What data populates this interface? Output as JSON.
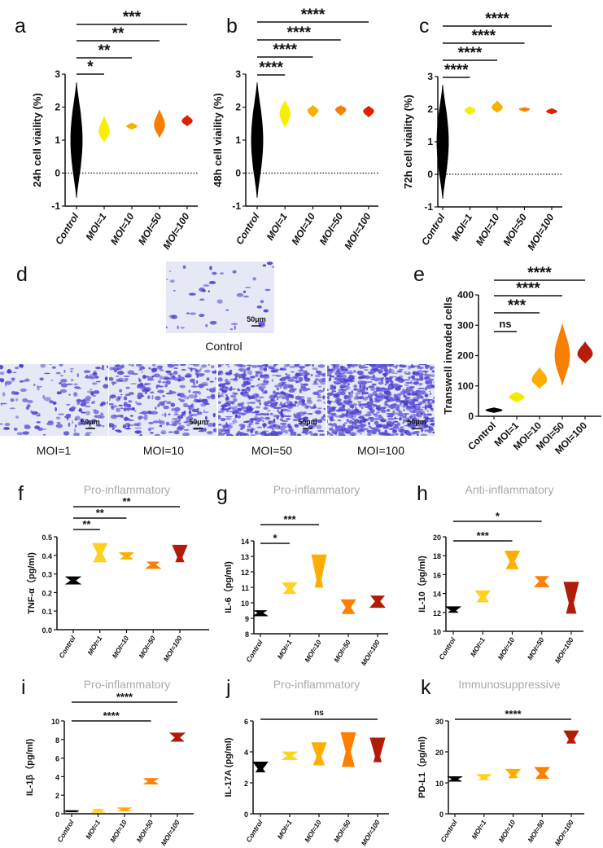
{
  "panel_d": {
    "label": "d",
    "images": [
      {
        "caption": "Control",
        "scale_bar": "50μm"
      },
      {
        "caption": "MOI=1",
        "scale_bar": "50μm"
      },
      {
        "caption": "MOI=10",
        "scale_bar": "50μm"
      },
      {
        "caption": "MOI=50",
        "scale_bar": "50μm"
      },
      {
        "caption": "MOI=100",
        "scale_bar": "50μm"
      }
    ]
  },
  "chart_data": [
    {
      "id": "a",
      "type": "violin",
      "panel_label": "a",
      "title": "",
      "ylabel": "24h cell viaility (%)",
      "ylim": [
        -1,
        3
      ],
      "yticks": [
        "-1",
        "0",
        "1",
        "2",
        "3"
      ],
      "reference_line": 0,
      "categories": [
        "Control",
        "MOI=1",
        "MOI=10",
        "MOI=50",
        "MOI=100"
      ],
      "series": [
        {
          "name": "Control",
          "min": -0.75,
          "max": 2.75,
          "median": 1.0,
          "color": "#000000"
        },
        {
          "name": "MOI=1",
          "min": 0.95,
          "max": 1.72,
          "median": 1.25,
          "color": "#f7ee00"
        },
        {
          "name": "MOI=10",
          "min": 1.33,
          "max": 1.52,
          "median": 1.42,
          "color": "#f9b000"
        },
        {
          "name": "MOI=50",
          "min": 1.08,
          "max": 1.92,
          "median": 1.45,
          "color": "#f77e00"
        },
        {
          "name": "MOI=100",
          "min": 1.43,
          "max": 1.75,
          "median": 1.58,
          "color": "#e02000"
        }
      ],
      "comparisons": [
        {
          "to": "MOI=1",
          "label": "*"
        },
        {
          "to": "MOI=10",
          "label": "**"
        },
        {
          "to": "MOI=50",
          "label": "**"
        },
        {
          "to": "MOI=100",
          "label": "***"
        }
      ]
    },
    {
      "id": "b",
      "type": "violin",
      "panel_label": "b",
      "title": "",
      "ylabel": "48h cell viaility (%)",
      "ylim": [
        -1,
        3
      ],
      "yticks": [
        "-1",
        "0",
        "1",
        "2",
        "3"
      ],
      "reference_line": 0,
      "categories": [
        "Control",
        "MOI=1",
        "MOI=10",
        "MOI=50",
        "MOI=100"
      ],
      "series": [
        {
          "name": "Control",
          "min": -0.75,
          "max": 2.75,
          "median": 1.0,
          "color": "#000000"
        },
        {
          "name": "MOI=1",
          "min": 1.38,
          "max": 2.2,
          "median": 1.8,
          "color": "#f7ee00"
        },
        {
          "name": "MOI=10",
          "min": 1.7,
          "max": 2.05,
          "median": 1.9,
          "color": "#f9b000"
        },
        {
          "name": "MOI=50",
          "min": 1.75,
          "max": 2.05,
          "median": 1.93,
          "color": "#f77e00"
        },
        {
          "name": "MOI=100",
          "min": 1.7,
          "max": 2.03,
          "median": 1.88,
          "color": "#e02000"
        }
      ],
      "comparisons": [
        {
          "to": "MOI=1",
          "label": "****"
        },
        {
          "to": "MOI=10",
          "label": "****"
        },
        {
          "to": "MOI=50",
          "label": "****"
        },
        {
          "to": "MOI=100",
          "label": "****"
        }
      ]
    },
    {
      "id": "c",
      "type": "violin",
      "panel_label": "c",
      "title": "",
      "ylabel": "72h cell viaility (%)",
      "ylim": [
        -1,
        3
      ],
      "yticks": [
        "-1",
        "0",
        "1",
        "2",
        "3"
      ],
      "reference_line": 0,
      "categories": [
        "Control",
        "MOI=1",
        "MOI=10",
        "MOI=50",
        "MOI=100"
      ],
      "series": [
        {
          "name": "Control",
          "min": -0.75,
          "max": 2.75,
          "median": 1.0,
          "color": "#000000"
        },
        {
          "name": "MOI=1",
          "min": 1.83,
          "max": 2.08,
          "median": 1.97,
          "color": "#f7ee00"
        },
        {
          "name": "MOI=10",
          "min": 1.9,
          "max": 2.25,
          "median": 2.05,
          "color": "#f9b000"
        },
        {
          "name": "MOI=50",
          "min": 1.93,
          "max": 2.05,
          "median": 2.0,
          "color": "#f77e00"
        },
        {
          "name": "MOI=100",
          "min": 1.85,
          "max": 2.02,
          "median": 1.93,
          "color": "#e02000"
        }
      ],
      "comparisons": [
        {
          "to": "MOI=1",
          "label": "****"
        },
        {
          "to": "MOI=10",
          "label": "****"
        },
        {
          "to": "MOI=50",
          "label": "****"
        },
        {
          "to": "MOI=100",
          "label": "****"
        }
      ]
    },
    {
      "id": "e",
      "type": "violin",
      "panel_label": "e",
      "title": "",
      "ylabel": "Transwell invaded cells",
      "ylim": [
        0,
        400
      ],
      "yticks": [
        "0",
        "100",
        "200",
        "300",
        "400"
      ],
      "categories": [
        "Control",
        "MOI=1",
        "MOI=10",
        "MOI=50",
        "MOI=100"
      ],
      "series": [
        {
          "name": "Control",
          "min": 12,
          "max": 28,
          "median": 20,
          "color": "#000000"
        },
        {
          "name": "MOI=1",
          "min": 47,
          "max": 80,
          "median": 63,
          "color": "#f5e800"
        },
        {
          "name": "MOI=10",
          "min": 92,
          "max": 160,
          "median": 120,
          "color": "#fbb000"
        },
        {
          "name": "MOI=50",
          "min": 102,
          "max": 305,
          "median": 200,
          "color": "#f88000"
        },
        {
          "name": "MOI=100",
          "min": 175,
          "max": 245,
          "median": 205,
          "color": "#b51c0c"
        }
      ],
      "comparisons": [
        {
          "to": "MOI=1",
          "label": "ns"
        },
        {
          "to": "MOI=10",
          "label": "***"
        },
        {
          "to": "MOI=50",
          "label": "****"
        },
        {
          "to": "MOI=100",
          "label": "****"
        }
      ]
    },
    {
      "id": "f",
      "type": "violin",
      "panel_label": "f",
      "title": "Pro-inflammatory",
      "ylabel": "TNF-α（pg/ml)",
      "ylim": [
        0,
        0.5
      ],
      "yticks": [
        "0.0",
        "0.1",
        "0.2",
        "0.3",
        "0.4",
        "0.5"
      ],
      "categories": [
        "Control",
        "MOI=1",
        "MOI=10",
        "MOI=50",
        "MOI=100"
      ],
      "series": [
        {
          "name": "Control",
          "min": 0.245,
          "max": 0.285,
          "median": 0.265,
          "color": "#000000"
        },
        {
          "name": "MOI=1",
          "min": 0.365,
          "max": 0.465,
          "median": 0.41,
          "color": "#ffd21f"
        },
        {
          "name": "MOI=10",
          "min": 0.38,
          "max": 0.415,
          "median": 0.395,
          "color": "#ffae00"
        },
        {
          "name": "MOI=50",
          "min": 0.33,
          "max": 0.365,
          "median": 0.35,
          "color": "#ff7f00"
        },
        {
          "name": "MOI=100",
          "min": 0.365,
          "max": 0.455,
          "median": 0.39,
          "color": "#b01c08"
        }
      ],
      "comparisons": [
        {
          "to": "MOI=1",
          "label": "**"
        },
        {
          "to": "MOI=10",
          "label": "**"
        },
        {
          "to": "MOI=100",
          "label": "**"
        }
      ]
    },
    {
      "id": "g",
      "type": "violin",
      "panel_label": "g",
      "title": "Pro-inflammatory",
      "ylabel": "IL-6（pg/ml)",
      "ylim": [
        8,
        14
      ],
      "yticks": [
        "8",
        "9",
        "10",
        "11",
        "12",
        "13",
        "14"
      ],
      "categories": [
        "Control",
        "MOI=1",
        "MOI=10",
        "MOI=50",
        "MOI=100"
      ],
      "series": [
        {
          "name": "Control",
          "min": 9.15,
          "max": 9.5,
          "median": 9.35,
          "color": "#000000"
        },
        {
          "name": "MOI=1",
          "min": 10.6,
          "max": 11.3,
          "median": 10.9,
          "color": "#ffd21f"
        },
        {
          "name": "MOI=10",
          "min": 11.0,
          "max": 13.1,
          "median": 11.5,
          "color": "#ffae00"
        },
        {
          "name": "MOI=50",
          "min": 9.3,
          "max": 10.2,
          "median": 9.7,
          "color": "#ff7f00"
        },
        {
          "name": "MOI=100",
          "min": 9.7,
          "max": 10.45,
          "median": 10.1,
          "color": "#b01c08"
        }
      ],
      "comparisons": [
        {
          "to": "MOI=1",
          "label": "*"
        },
        {
          "to": "MOI=10",
          "label": "***"
        }
      ]
    },
    {
      "id": "h",
      "type": "violin",
      "panel_label": "h",
      "title": "Anti-inflammatory",
      "ylabel": "IL-10（pg/ml)",
      "ylim": [
        10,
        20
      ],
      "yticks": [
        "10",
        "12",
        "14",
        "16",
        "18",
        "20"
      ],
      "categories": [
        "Control",
        "MOI=1",
        "MOI=10",
        "MOI=50",
        "MOI=100"
      ],
      "series": [
        {
          "name": "Control",
          "min": 12.0,
          "max": 12.6,
          "median": 12.2,
          "color": "#000000"
        },
        {
          "name": "MOI=1",
          "min": 13.1,
          "max": 14.3,
          "median": 13.6,
          "color": "#ffd21f"
        },
        {
          "name": "MOI=10",
          "min": 16.6,
          "max": 18.5,
          "median": 17.4,
          "color": "#ffae00"
        },
        {
          "name": "MOI=50",
          "min": 14.7,
          "max": 15.8,
          "median": 15.3,
          "color": "#ff7f00"
        },
        {
          "name": "MOI=100",
          "min": 11.9,
          "max": 15.2,
          "median": 13.0,
          "color": "#b01c08"
        }
      ],
      "comparisons": [
        {
          "to": "MOI=10",
          "label": "***"
        },
        {
          "to": "MOI=50",
          "label": "*"
        }
      ]
    },
    {
      "id": "i",
      "type": "violin",
      "panel_label": "i",
      "title": "Pro-inflammatory",
      "ylabel": "IL-1β（pg/ml)",
      "ylim": [
        0,
        10
      ],
      "yticks": [
        "0",
        "2",
        "4",
        "6",
        "8",
        "10"
      ],
      "categories": [
        "Control",
        "MOI=1",
        "MOI=10",
        "MOI=50",
        "MOI=100"
      ],
      "series": [
        {
          "name": "Control",
          "min": 0.2,
          "max": 0.35,
          "median": 0.27,
          "color": "#000000"
        },
        {
          "name": "MOI=1",
          "min": 0.15,
          "max": 0.5,
          "median": 0.35,
          "color": "#ffd21f"
        },
        {
          "name": "MOI=10",
          "min": 0.3,
          "max": 0.65,
          "median": 0.45,
          "color": "#ffae00"
        },
        {
          "name": "MOI=50",
          "min": 3.2,
          "max": 3.8,
          "median": 3.5,
          "color": "#ff7f00"
        },
        {
          "name": "MOI=100",
          "min": 7.8,
          "max": 8.7,
          "median": 8.2,
          "color": "#b01c08"
        }
      ],
      "comparisons": [
        {
          "to": "MOI=50",
          "label": "****"
        },
        {
          "to": "MOI=100",
          "label": "****"
        }
      ]
    },
    {
      "id": "j",
      "type": "violin",
      "panel_label": "j",
      "title": "Pro-inflammatory",
      "ylabel": "IL-17A (pg/ml)",
      "ylim": [
        0,
        6
      ],
      "yticks": [
        "0",
        "2",
        "4",
        "6"
      ],
      "categories": [
        "Control",
        "MOI=1",
        "MOI=10",
        "MOI=50",
        "MOI=100"
      ],
      "series": [
        {
          "name": "Control",
          "min": 2.7,
          "max": 3.35,
          "median": 2.9,
          "color": "#000000"
        },
        {
          "name": "MOI=1",
          "min": 3.5,
          "max": 4.0,
          "median": 3.75,
          "color": "#ffd21f"
        },
        {
          "name": "MOI=10",
          "min": 3.15,
          "max": 4.6,
          "median": 3.7,
          "color": "#ffae00"
        },
        {
          "name": "MOI=50",
          "min": 3.05,
          "max": 5.25,
          "median": 4.0,
          "color": "#ff7f00"
        },
        {
          "name": "MOI=100",
          "min": 3.35,
          "max": 4.9,
          "median": 3.7,
          "color": "#b01c08"
        }
      ],
      "comparisons": [
        {
          "to": "MOI=100",
          "label": "ns"
        }
      ]
    },
    {
      "id": "k",
      "type": "violin",
      "panel_label": "k",
      "title": "Immunosuppressive",
      "ylabel": "PD-L1（pg/ml)",
      "ylim": [
        0,
        30
      ],
      "yticks": [
        "0",
        "10",
        "20",
        "30"
      ],
      "categories": [
        "Control",
        "MOI=1",
        "MOI=10",
        "MOI=50",
        "MOI=100"
      ],
      "series": [
        {
          "name": "Control",
          "min": 10.5,
          "max": 12.0,
          "median": 11.2,
          "color": "#000000"
        },
        {
          "name": "MOI=1",
          "min": 11.0,
          "max": 12.7,
          "median": 11.6,
          "color": "#ffd21f"
        },
        {
          "name": "MOI=10",
          "min": 11.6,
          "max": 14.4,
          "median": 12.5,
          "color": "#ffae00"
        },
        {
          "name": "MOI=50",
          "min": 11.4,
          "max": 15.0,
          "median": 13.0,
          "color": "#ff7f00"
        },
        {
          "name": "MOI=100",
          "min": 22.8,
          "max": 26.8,
          "median": 24.0,
          "color": "#b01c08"
        }
      ],
      "comparisons": [
        {
          "to": "MOI=100",
          "label": "****"
        }
      ]
    }
  ]
}
